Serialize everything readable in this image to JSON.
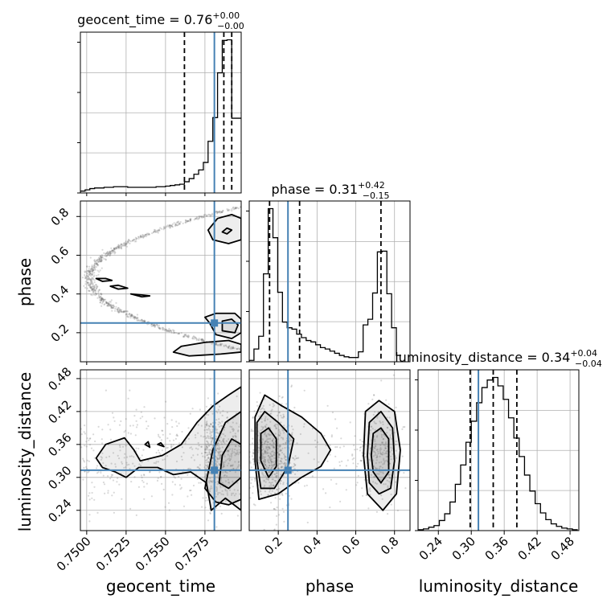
{
  "colors": {
    "truth": "#4682b4",
    "contour": "#000000",
    "quantile": "#000000",
    "grid": "#b0b0b0"
  },
  "chart_data": {
    "type": "corner",
    "parameters": [
      "geocent_time",
      "phase",
      "luminosity_distance"
    ],
    "axis_labels": {
      "geocent_time": "geocent_time",
      "phase": "phase",
      "luminosity_distance": "luminosity_distance"
    },
    "titles": [
      {
        "param": "geocent_time",
        "text": "geocent_time = 0.76",
        "plus": "+0.00",
        "minus": "−0.00"
      },
      {
        "param": "phase",
        "text": "phase = 0.31",
        "plus": "+0.42",
        "minus": "−0.15"
      },
      {
        "param": "luminosity_distance",
        "text": "luminosity_distance = 0.34",
        "plus": "+0.04",
        "minus": "−0.04"
      }
    ],
    "ranges": {
      "geocent_time": [
        0.7496,
        0.7598
      ],
      "phase": [
        0.05,
        0.88
      ],
      "luminosity_distance": [
        0.203,
        0.496
      ]
    },
    "ticks": {
      "geocent_time": {
        "values": [
          0.75,
          0.7525,
          0.755,
          0.7575
        ],
        "labels": [
          "0.7500",
          "0.7525",
          "0.7550",
          "0.7575"
        ]
      },
      "phase": {
        "values": [
          0.2,
          0.4,
          0.6,
          0.8
        ],
        "labels": [
          "0.2",
          "0.4",
          "0.6",
          "0.8"
        ]
      },
      "luminosity_distance": {
        "values": [
          0.24,
          0.3,
          0.36,
          0.42,
          0.48
        ],
        "labels": [
          "0.24",
          "0.30",
          "0.36",
          "0.42",
          "0.48"
        ]
      }
    },
    "truths": {
      "geocent_time": 0.7581,
      "phase": 0.25,
      "luminosity_distance": 0.313
    },
    "quantiles": {
      "geocent_time": [
        0.7562,
        0.7587,
        0.7592
      ],
      "phase": [
        0.155,
        0.31,
        0.73
      ],
      "luminosity_distance": [
        0.298,
        0.34,
        0.383
      ]
    },
    "histograms": {
      "geocent_time": {
        "edges": [
          0.7496,
          0.7499,
          0.7502,
          0.7505,
          0.7508,
          0.7511,
          0.7514,
          0.7517,
          0.752,
          0.7523,
          0.7526,
          0.7529,
          0.7532,
          0.7535,
          0.7538,
          0.7541,
          0.7544,
          0.7547,
          0.755,
          0.7553,
          0.7556,
          0.7559,
          0.7562,
          0.7565,
          0.7568,
          0.7571,
          0.7574,
          0.7577,
          0.758,
          0.7583,
          0.7586,
          0.7589,
          0.7592,
          0.7595,
          0.7598
        ],
        "counts": [
          3,
          5,
          7,
          8,
          8,
          9,
          9,
          10,
          10,
          10,
          9,
          9,
          9,
          9,
          9,
          9,
          10,
          10,
          11,
          12,
          13,
          14,
          18,
          23,
          30,
          37,
          49,
          83,
          121,
          193,
          245,
          246,
          120,
          120
        ]
      },
      "phase": {
        "edges": [
          0.05,
          0.0745,
          0.099,
          0.1235,
          0.148,
          0.1725,
          0.197,
          0.2215,
          0.246,
          0.2705,
          0.295,
          0.3195,
          0.344,
          0.3685,
          0.393,
          0.4175,
          0.442,
          0.4665,
          0.491,
          0.5155,
          0.54,
          0.5645,
          0.589,
          0.6135,
          0.638,
          0.6625,
          0.687,
          0.7115,
          0.736,
          0.7605,
          0.785,
          0.8095,
          0.834
        ],
        "counts": [
          2,
          18,
          36,
          124,
          216,
          175,
          98,
          56,
          48,
          46,
          39,
          34,
          30,
          28,
          24,
          20,
          18,
          15,
          12,
          9,
          7,
          6,
          6,
          14,
          52,
          60,
          97,
          155,
          156,
          96,
          48,
          9
        ]
      },
      "luminosity_distance": {
        "edges": [
          0.203,
          0.2127,
          0.2224,
          0.2321,
          0.2418,
          0.2515,
          0.2612,
          0.2709,
          0.2806,
          0.2903,
          0.3,
          0.3097,
          0.3194,
          0.3291,
          0.3388,
          0.3485,
          0.3582,
          0.3679,
          0.3776,
          0.3873,
          0.397,
          0.4067,
          0.4164,
          0.4261,
          0.4358,
          0.4455,
          0.4552,
          0.4649,
          0.4746,
          0.4843,
          0.494
        ],
        "counts": [
          1,
          2,
          4,
          6,
          12,
          20,
          34,
          55,
          78,
          105,
          130,
          152,
          170,
          179,
          182,
          172,
          156,
          134,
          110,
          88,
          66,
          47,
          32,
          21,
          13,
          8,
          5,
          3,
          2,
          1
        ]
      }
    },
    "pairs": [
      {
        "x": "geocent_time",
        "y": "phase",
        "contours": [
          [
            [
              0.7577,
              0.73
            ],
            [
              0.7583,
              0.79
            ],
            [
              0.7592,
              0.81
            ],
            [
              0.7598,
              0.79
            ],
            [
              0.7598,
              0.68
            ],
            [
              0.759,
              0.66
            ],
            [
              0.758,
              0.68
            ],
            [
              0.7577,
              0.73
            ]
          ],
          [
            [
              0.7586,
              0.72
            ],
            [
              0.7589,
              0.74
            ],
            [
              0.7592,
              0.73
            ],
            [
              0.7589,
              0.71
            ],
            [
              0.7586,
              0.72
            ]
          ],
          [
            [
              0.7578,
              0.25
            ],
            [
              0.7575,
              0.28
            ],
            [
              0.7582,
              0.3
            ],
            [
              0.7594,
              0.3
            ],
            [
              0.7598,
              0.27
            ],
            [
              0.7598,
              0.2
            ],
            [
              0.7592,
              0.17
            ],
            [
              0.7582,
              0.19
            ],
            [
              0.7578,
              0.25
            ]
          ],
          [
            [
              0.7586,
              0.21
            ],
            [
              0.7586,
              0.26
            ],
            [
              0.7592,
              0.27
            ],
            [
              0.7596,
              0.24
            ],
            [
              0.7594,
              0.2
            ],
            [
              0.7586,
              0.21
            ]
          ],
          [
            [
              0.7555,
              0.1
            ],
            [
              0.756,
              0.13
            ],
            [
              0.7575,
              0.15
            ],
            [
              0.759,
              0.16
            ],
            [
              0.7598,
              0.14
            ],
            [
              0.7598,
              0.1
            ],
            [
              0.7585,
              0.09
            ],
            [
              0.7565,
              0.08
            ],
            [
              0.7555,
              0.1
            ]
          ],
          [
            [
              0.7506,
              0.48
            ],
            [
              0.7512,
              0.48
            ],
            [
              0.7516,
              0.47
            ],
            [
              0.751,
              0.465
            ],
            [
              0.7506,
              0.48
            ]
          ],
          [
            [
              0.7515,
              0.44
            ],
            [
              0.752,
              0.445
            ],
            [
              0.7526,
              0.43
            ],
            [
              0.752,
              0.425
            ],
            [
              0.7515,
              0.44
            ]
          ],
          [
            [
              0.7528,
              0.4
            ],
            [
              0.7535,
              0.395
            ],
            [
              0.754,
              0.39
            ],
            [
              0.7535,
              0.385
            ],
            [
              0.7528,
              0.4
            ]
          ]
        ]
      },
      {
        "x": "geocent_time",
        "y": "luminosity_distance",
        "contours": [
          [
            [
              0.7506,
              0.335
            ],
            [
              0.7512,
              0.36
            ],
            [
              0.7524,
              0.372
            ],
            [
              0.753,
              0.35
            ],
            [
              0.7534,
              0.33
            ],
            [
              0.7548,
              0.34
            ],
            [
              0.756,
              0.36
            ],
            [
              0.757,
              0.4
            ],
            [
              0.758,
              0.43
            ],
            [
              0.759,
              0.45
            ],
            [
              0.7598,
              0.465
            ],
            [
              0.7598,
              0.24
            ],
            [
              0.7588,
              0.262
            ],
            [
              0.7579,
              0.24
            ],
            [
              0.7576,
              0.29
            ],
            [
              0.7566,
              0.31
            ],
            [
              0.7555,
              0.305
            ],
            [
              0.7545,
              0.318
            ],
            [
              0.7533,
              0.318
            ],
            [
              0.7525,
              0.3
            ],
            [
              0.7518,
              0.31
            ],
            [
              0.751,
              0.318
            ],
            [
              0.7506,
              0.335
            ]
          ],
          [
            [
              0.7575,
              0.28
            ],
            [
              0.758,
              0.35
            ],
            [
              0.7588,
              0.4
            ],
            [
              0.7598,
              0.42
            ],
            [
              0.7598,
              0.26
            ],
            [
              0.759,
              0.25
            ],
            [
              0.7582,
              0.255
            ],
            [
              0.7575,
              0.28
            ]
          ],
          [
            [
              0.7584,
              0.29
            ],
            [
              0.7586,
              0.34
            ],
            [
              0.7592,
              0.37
            ],
            [
              0.7598,
              0.36
            ],
            [
              0.7598,
              0.3
            ],
            [
              0.759,
              0.28
            ],
            [
              0.7584,
              0.29
            ]
          ],
          [
            [
              0.7537,
              0.36
            ],
            [
              0.7539,
              0.365
            ],
            [
              0.754,
              0.355
            ],
            [
              0.7537,
              0.36
            ]
          ],
          [
            [
              0.7545,
              0.36
            ],
            [
              0.7547,
              0.363
            ],
            [
              0.7549,
              0.356
            ],
            [
              0.7545,
              0.36
            ]
          ]
        ]
      },
      {
        "x": "phase",
        "y": "luminosity_distance",
        "contours": [
          [
            [
              0.08,
              0.33
            ],
            [
              0.08,
              0.41
            ],
            [
              0.13,
              0.45
            ],
            [
              0.22,
              0.43
            ],
            [
              0.32,
              0.41
            ],
            [
              0.42,
              0.38
            ],
            [
              0.47,
              0.35
            ],
            [
              0.42,
              0.32
            ],
            [
              0.32,
              0.3
            ],
            [
              0.2,
              0.27
            ],
            [
              0.1,
              0.26
            ],
            [
              0.08,
              0.33
            ]
          ],
          [
            [
              0.09,
              0.33
            ],
            [
              0.09,
              0.4
            ],
            [
              0.13,
              0.42
            ],
            [
              0.2,
              0.4
            ],
            [
              0.28,
              0.37
            ],
            [
              0.25,
              0.32
            ],
            [
              0.18,
              0.28
            ],
            [
              0.11,
              0.28
            ],
            [
              0.09,
              0.33
            ]
          ],
          [
            [
              0.11,
              0.33
            ],
            [
              0.11,
              0.38
            ],
            [
              0.15,
              0.39
            ],
            [
              0.19,
              0.37
            ],
            [
              0.19,
              0.32
            ],
            [
              0.15,
              0.3
            ],
            [
              0.11,
              0.33
            ]
          ],
          [
            [
              0.64,
              0.34
            ],
            [
              0.65,
              0.42
            ],
            [
              0.72,
              0.44
            ],
            [
              0.8,
              0.42
            ],
            [
              0.83,
              0.35
            ],
            [
              0.81,
              0.27
            ],
            [
              0.74,
              0.24
            ],
            [
              0.66,
              0.27
            ],
            [
              0.64,
              0.34
            ]
          ],
          [
            [
              0.66,
              0.34
            ],
            [
              0.67,
              0.4
            ],
            [
              0.73,
              0.42
            ],
            [
              0.79,
              0.39
            ],
            [
              0.8,
              0.33
            ],
            [
              0.78,
              0.28
            ],
            [
              0.72,
              0.27
            ],
            [
              0.67,
              0.29
            ],
            [
              0.66,
              0.34
            ]
          ],
          [
            [
              0.68,
              0.34
            ],
            [
              0.69,
              0.38
            ],
            [
              0.73,
              0.39
            ],
            [
              0.77,
              0.37
            ],
            [
              0.77,
              0.31
            ],
            [
              0.73,
              0.29
            ],
            [
              0.69,
              0.31
            ],
            [
              0.68,
              0.34
            ]
          ]
        ]
      }
    ]
  }
}
